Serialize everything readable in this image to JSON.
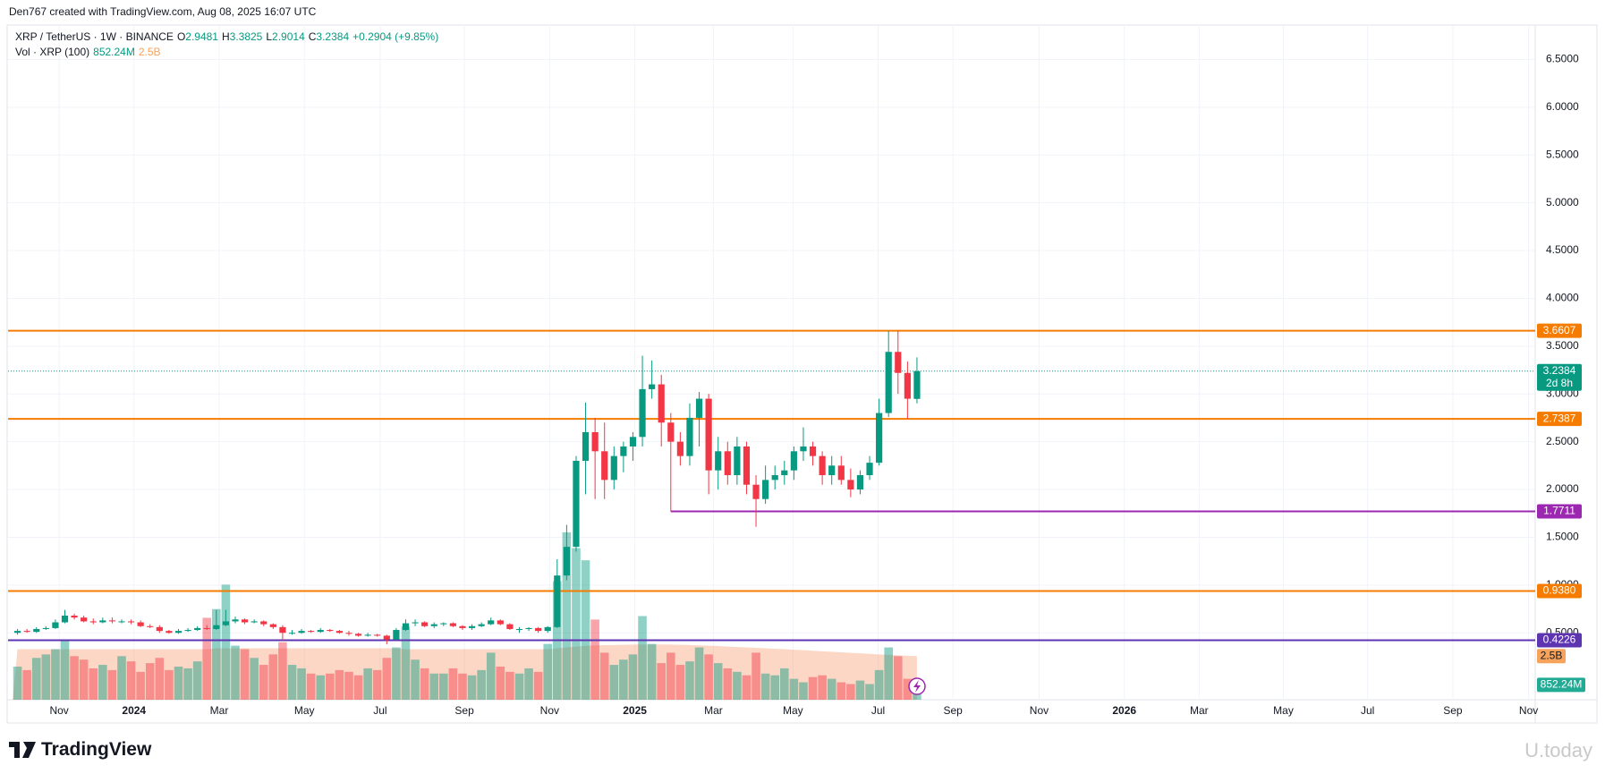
{
  "header": "Den767 created with TradingView.com, Aug 08, 2025 16:07 UTC",
  "footer": {
    "logo": "TradingView",
    "watermark": "U.today"
  },
  "chart_data": {
    "type": "candlestick",
    "symbol": "XRP / TetherUS · 1W · BINANCE",
    "ohlc_letters": [
      "O",
      "H",
      "L",
      "C"
    ],
    "change": "+0.2904 (+9.85%)",
    "volume_title": "Vol · XRP (100)",
    "volume_last_label": "852.24M",
    "volume_ma_last_label": "2.5B",
    "countdown": "2d 8h",
    "up_color": "#089981",
    "down_color": "#f23645",
    "open": [
      0.5,
      0.52,
      0.51,
      0.54,
      0.55,
      0.61,
      0.68,
      0.66,
      0.62,
      0.61,
      0.63,
      0.62,
      0.62,
      0.61,
      0.57,
      0.56,
      0.52,
      0.5,
      0.52,
      0.53,
      0.55,
      0.54,
      0.58,
      0.62,
      0.64,
      0.61,
      0.62,
      0.59,
      0.56,
      0.5,
      0.5,
      0.52,
      0.51,
      0.53,
      0.52,
      0.5,
      0.49,
      0.47,
      0.48,
      0.47,
      0.43,
      0.53,
      0.6,
      0.61,
      0.57,
      0.59,
      0.6,
      0.57,
      0.55,
      0.57,
      0.59,
      0.63,
      0.59,
      0.54,
      0.54,
      0.55,
      0.52,
      0.56,
      1.1,
      1.4,
      2.3,
      2.6,
      2.4,
      2.1,
      2.35,
      2.45,
      2.55,
      3.05,
      3.1,
      2.7,
      2.5,
      2.35,
      2.75,
      2.95,
      2.2,
      2.4,
      2.15,
      2.45,
      2.05,
      1.9,
      2.1,
      2.15,
      2.2,
      2.4,
      2.45,
      2.35,
      2.15,
      2.25,
      2.1,
      2.0,
      2.15,
      2.28,
      2.8,
      3.44,
      3.22,
      2.9481
    ],
    "high": [
      0.54,
      0.54,
      0.56,
      0.57,
      0.64,
      0.74,
      0.7,
      0.68,
      0.65,
      0.66,
      0.66,
      0.64,
      0.64,
      0.63,
      0.59,
      0.58,
      0.53,
      0.54,
      0.55,
      0.57,
      0.58,
      0.74,
      0.74,
      0.67,
      0.65,
      0.64,
      0.63,
      0.6,
      0.58,
      0.53,
      0.54,
      0.53,
      0.55,
      0.54,
      0.53,
      0.52,
      0.5,
      0.5,
      0.49,
      0.48,
      0.55,
      0.64,
      0.64,
      0.62,
      0.61,
      0.61,
      0.61,
      0.58,
      0.59,
      0.61,
      0.66,
      0.64,
      0.6,
      0.56,
      0.56,
      0.56,
      0.57,
      1.27,
      1.63,
      2.35,
      2.91,
      2.75,
      2.7,
      2.45,
      2.5,
      2.6,
      3.4,
      3.35,
      3.2,
      2.8,
      2.6,
      2.9,
      3.02,
      3.0,
      2.55,
      2.5,
      2.55,
      2.5,
      2.15,
      2.25,
      2.25,
      2.3,
      2.45,
      2.65,
      2.5,
      2.4,
      2.35,
      2.35,
      2.22,
      2.2,
      2.35,
      2.95,
      3.66,
      3.66,
      3.34,
      3.3825
    ],
    "low": [
      0.48,
      0.5,
      0.5,
      0.53,
      0.54,
      0.6,
      0.64,
      0.61,
      0.59,
      0.6,
      0.6,
      0.6,
      0.59,
      0.56,
      0.55,
      0.5,
      0.49,
      0.49,
      0.51,
      0.52,
      0.53,
      0.53,
      0.57,
      0.6,
      0.59,
      0.6,
      0.57,
      0.54,
      0.42,
      0.48,
      0.49,
      0.5,
      0.5,
      0.51,
      0.49,
      0.47,
      0.46,
      0.46,
      0.46,
      0.38,
      0.43,
      0.52,
      0.57,
      0.56,
      0.55,
      0.57,
      0.56,
      0.53,
      0.53,
      0.56,
      0.58,
      0.58,
      0.53,
      0.5,
      0.52,
      0.5,
      0.5,
      0.55,
      1.05,
      1.35,
      1.95,
      1.9,
      1.9,
      2.0,
      2.18,
      2.3,
      2.45,
      2.95,
      2.45,
      1.77,
      2.25,
      2.25,
      2.45,
      1.95,
      2.0,
      2.05,
      2.05,
      1.95,
      1.61,
      1.85,
      2.0,
      2.05,
      2.1,
      2.3,
      2.25,
      2.05,
      2.05,
      2.05,
      1.92,
      1.95,
      2.1,
      2.25,
      2.76,
      3.0,
      2.74,
      2.9014
    ],
    "close": [
      0.52,
      0.51,
      0.54,
      0.55,
      0.61,
      0.68,
      0.66,
      0.62,
      0.61,
      0.63,
      0.62,
      0.62,
      0.61,
      0.57,
      0.56,
      0.52,
      0.5,
      0.52,
      0.53,
      0.55,
      0.54,
      0.58,
      0.62,
      0.64,
      0.61,
      0.62,
      0.59,
      0.56,
      0.5,
      0.5,
      0.52,
      0.51,
      0.53,
      0.52,
      0.5,
      0.49,
      0.47,
      0.48,
      0.47,
      0.43,
      0.53,
      0.6,
      0.61,
      0.57,
      0.59,
      0.6,
      0.57,
      0.55,
      0.57,
      0.59,
      0.63,
      0.59,
      0.54,
      0.54,
      0.55,
      0.52,
      0.56,
      1.1,
      1.4,
      2.3,
      2.6,
      2.4,
      2.1,
      2.35,
      2.45,
      2.55,
      3.05,
      3.1,
      2.7,
      2.5,
      2.35,
      2.75,
      2.95,
      2.2,
      2.4,
      2.15,
      2.45,
      2.05,
      1.9,
      2.1,
      2.15,
      2.2,
      2.4,
      2.45,
      2.35,
      2.15,
      2.25,
      2.1,
      2.0,
      2.15,
      2.28,
      2.8,
      3.44,
      3.22,
      2.95,
      3.2384
    ],
    "volume": [
      1900,
      1700,
      2400,
      2600,
      2900,
      3400,
      2500,
      2300,
      1800,
      2000,
      1700,
      2500,
      2200,
      1600,
      2100,
      2400,
      1700,
      1900,
      1800,
      2200,
      4700,
      5200,
      6600,
      3100,
      2900,
      2400,
      2000,
      2600,
      3300,
      2000,
      1800,
      1500,
      1400,
      1500,
      1700,
      1600,
      1400,
      1800,
      1700,
      2400,
      3000,
      4200,
      2300,
      1800,
      1500,
      1500,
      1800,
      1500,
      1400,
      1700,
      2700,
      1900,
      1600,
      1500,
      1800,
      1600,
      3200,
      6800,
      9600,
      8700,
      8000,
      4600,
      2700,
      2000,
      2300,
      2600,
      4800,
      3200,
      2100,
      2700,
      2000,
      2200,
      3000,
      2600,
      2100,
      1800,
      1600,
      1400,
      2700,
      1500,
      1400,
      1800,
      1200,
      1000,
      1300,
      1400,
      1200,
      1000,
      900,
      1100,
      900,
      1700,
      3000,
      2500,
      1200,
      852.24
    ],
    "volume_ma": [
      2900,
      2900,
      2900,
      2900,
      2900,
      2900,
      2900,
      2900,
      2900,
      2900,
      2900,
      2900,
      2900,
      2900,
      2900,
      2900,
      2900,
      2900,
      2900,
      2900,
      2900,
      2950,
      2950,
      2950,
      2950,
      2950,
      2950,
      2950,
      2950,
      2950,
      2950,
      2950,
      2950,
      2950,
      2950,
      2950,
      2950,
      2950,
      2950,
      2950,
      2950,
      2900,
      2900,
      2900,
      2900,
      2900,
      2900,
      2900,
      2900,
      2900,
      2900,
      2900,
      2900,
      2900,
      2900,
      2900,
      2900,
      2950,
      3000,
      3050,
      3100,
      3120,
      3130,
      3140,
      3150,
      3160,
      3170,
      3170,
      3170,
      3160,
      3150,
      3140,
      3120,
      3100,
      3080,
      3050,
      3020,
      3000,
      2980,
      2950,
      2920,
      2900,
      2870,
      2840,
      2810,
      2780,
      2750,
      2720,
      2690,
      2660,
      2630,
      2600,
      2580,
      2550,
      2520,
      2500
    ],
    "vlim": [
      0,
      38700
    ],
    "ylim": [
      -0.2,
      6.86
    ],
    "yticks": [
      {
        "value": 0.5,
        "label": "0.5000"
      },
      {
        "value": 1,
        "label": "1.0000"
      },
      {
        "value": 1.5,
        "label": "1.5000"
      },
      {
        "value": 2,
        "label": "2.0000"
      },
      {
        "value": 2.5,
        "label": "2.5000"
      },
      {
        "value": 3,
        "label": "3.0000"
      },
      {
        "value": 3.5,
        "label": "3.5000"
      },
      {
        "value": 4,
        "label": "4.0000"
      },
      {
        "value": 4.5,
        "label": "4.5000"
      },
      {
        "value": 5,
        "label": "5.0000"
      },
      {
        "value": 5.5,
        "label": "5.5000"
      },
      {
        "value": 6,
        "label": "6.0000"
      },
      {
        "value": 6.5,
        "label": "6.5000"
      }
    ],
    "xlim": [
      -1,
      160.3
    ],
    "xticks": [
      {
        "value": 4.4,
        "label": "Nov"
      },
      {
        "value": 12.3,
        "label": "2024"
      },
      {
        "value": 21.3,
        "label": "Mar"
      },
      {
        "value": 30.3,
        "label": "May"
      },
      {
        "value": 38.3,
        "label": "Jul"
      },
      {
        "value": 47.2,
        "label": "Sep"
      },
      {
        "value": 56.2,
        "label": "Nov"
      },
      {
        "value": 65.2,
        "label": "2025"
      },
      {
        "value": 73.5,
        "label": "Mar"
      },
      {
        "value": 81.9,
        "label": "May"
      },
      {
        "value": 90.9,
        "label": "Jul"
      },
      {
        "value": 98.8,
        "label": "Sep"
      },
      {
        "value": 107.9,
        "label": "Nov"
      },
      {
        "value": 116.9,
        "label": "2026"
      },
      {
        "value": 124.8,
        "label": "Mar"
      },
      {
        "value": 133.7,
        "label": "May"
      },
      {
        "value": 142.6,
        "label": "Jul"
      },
      {
        "value": 151.6,
        "label": "Sep"
      },
      {
        "value": 159.6,
        "label": "Nov"
      }
    ],
    "grid": true,
    "levels": [
      {
        "value": 3.6607,
        "color": "#f57c00"
      },
      {
        "value": 2.7387,
        "color": "#f57c00"
      },
      {
        "value": 1.7711,
        "color": "#9c27b0",
        "from": 69
      },
      {
        "value": 0.938,
        "label": "0.9380",
        "color": "#f57c00"
      },
      {
        "value": 0.4226,
        "color": "#5e35b1"
      }
    ]
  }
}
